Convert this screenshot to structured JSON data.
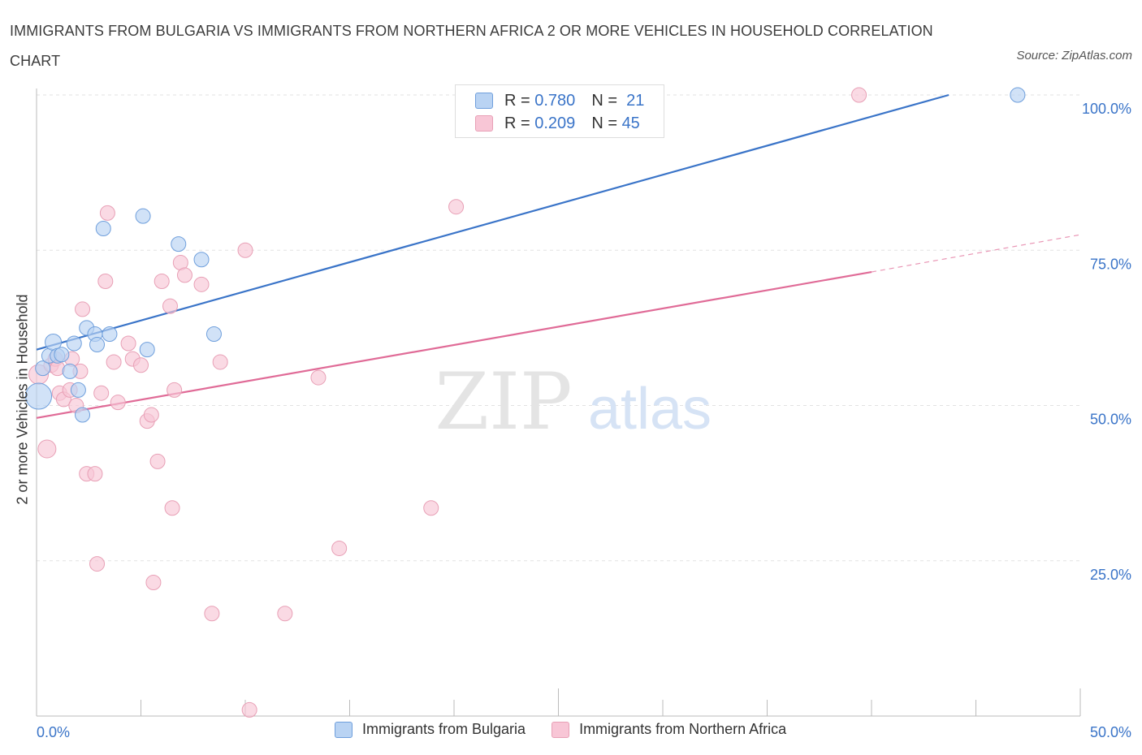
{
  "title": "IMMIGRANTS FROM BULGARIA VS IMMIGRANTS FROM NORTHERN AFRICA 2 OR MORE VEHICLES IN HOUSEHOLD CORRELATION CHART",
  "source": "Source: ZipAtlas.com",
  "watermark": {
    "zip": "ZIP",
    "atlas": "atlas"
  },
  "legend": {
    "rows": [
      {
        "r_label": "R =",
        "r_value": "0.780",
        "n_label": "N =",
        "n_value": "21"
      },
      {
        "r_label": "R =",
        "r_value": "0.209",
        "n_label": "N =",
        "n_value": "45"
      }
    ]
  },
  "colors": {
    "bulgaria_fill": "#b9d3f3",
    "bulgaria_stroke": "#6f9fdc",
    "bulgaria_line": "#3a74c8",
    "nafrica_fill": "#f8c6d6",
    "nafrica_stroke": "#e8a0b6",
    "nafrica_line": "#e06b97",
    "axis_text": "#3a74c8",
    "grid": "#e2e2e2"
  },
  "chart_data": {
    "type": "scatter",
    "title": "IMMIGRANTS FROM BULGARIA VS IMMIGRANTS FROM NORTHERN AFRICA 2 OR MORE VEHICLES IN HOUSEHOLD CORRELATION CHART",
    "xlabel": "",
    "ylabel": "2 or more Vehicles in Household",
    "xlim": [
      0,
      50
    ],
    "ylim": [
      0,
      100
    ],
    "x_tick_labels": [
      "0.0%",
      "50.0%"
    ],
    "y_ticks": [
      25,
      50,
      75,
      100
    ],
    "y_tick_labels": [
      "25.0%",
      "50.0%",
      "75.0%",
      "100.0%"
    ],
    "grid": true,
    "legend_position": "top-center",
    "series": [
      {
        "name": "Immigrants from Bulgaria",
        "r": 0.78,
        "n": 21,
        "points": [
          [
            0.1,
            51.5,
            16
          ],
          [
            0.3,
            56.0,
            9
          ],
          [
            0.6,
            58.0,
            9
          ],
          [
            0.8,
            60.2,
            10
          ],
          [
            1.0,
            58.0,
            9
          ],
          [
            1.2,
            58.2,
            9
          ],
          [
            1.6,
            55.5,
            9
          ],
          [
            1.8,
            60.0,
            9
          ],
          [
            2.0,
            52.5,
            9
          ],
          [
            2.2,
            48.5,
            9
          ],
          [
            2.4,
            62.5,
            9
          ],
          [
            2.8,
            61.5,
            9
          ],
          [
            2.9,
            59.8,
            9
          ],
          [
            3.2,
            78.5,
            9
          ],
          [
            3.5,
            61.5,
            9
          ],
          [
            5.1,
            80.5,
            9
          ],
          [
            5.3,
            59.0,
            9
          ],
          [
            6.8,
            76.0,
            9
          ],
          [
            7.9,
            73.5,
            9
          ],
          [
            8.5,
            61.5,
            9
          ],
          [
            47.0,
            100.0,
            9
          ]
        ],
        "trend": {
          "x0": 0,
          "y0": 59.0,
          "x1": 43.7,
          "y1": 100.0
        }
      },
      {
        "name": "Immigrants from Northern Africa",
        "r": 0.209,
        "n": 45,
        "points": [
          [
            0.1,
            55.0,
            12
          ],
          [
            0.5,
            43.0,
            11
          ],
          [
            0.7,
            56.5,
            9
          ],
          [
            0.9,
            57.5,
            9
          ],
          [
            1.0,
            56.0,
            9
          ],
          [
            1.1,
            52.0,
            9
          ],
          [
            1.3,
            51.0,
            9
          ],
          [
            1.6,
            52.5,
            9
          ],
          [
            1.7,
            57.5,
            9
          ],
          [
            1.9,
            50.0,
            9
          ],
          [
            2.1,
            55.5,
            9
          ],
          [
            2.2,
            65.5,
            9
          ],
          [
            2.4,
            39.0,
            9
          ],
          [
            2.8,
            39.0,
            9
          ],
          [
            2.9,
            24.5,
            9
          ],
          [
            3.1,
            52.0,
            9
          ],
          [
            3.3,
            70.0,
            9
          ],
          [
            3.4,
            81.0,
            9
          ],
          [
            3.7,
            57.0,
            9
          ],
          [
            3.9,
            50.5,
            9
          ],
          [
            4.4,
            60.0,
            9
          ],
          [
            4.6,
            57.5,
            9
          ],
          [
            5.0,
            56.5,
            9
          ],
          [
            5.3,
            47.5,
            9
          ],
          [
            5.5,
            48.5,
            9
          ],
          [
            5.6,
            21.5,
            9
          ],
          [
            5.8,
            41.0,
            9
          ],
          [
            6.0,
            70.0,
            9
          ],
          [
            6.4,
            66.0,
            9
          ],
          [
            6.5,
            33.5,
            9
          ],
          [
            6.6,
            52.5,
            9
          ],
          [
            6.9,
            73.0,
            9
          ],
          [
            7.1,
            71.0,
            9
          ],
          [
            7.9,
            69.5,
            9
          ],
          [
            8.4,
            16.5,
            9
          ],
          [
            8.8,
            57.0,
            9
          ],
          [
            10.0,
            75.0,
            9
          ],
          [
            10.2,
            1.0,
            9
          ],
          [
            11.9,
            16.5,
            9
          ],
          [
            13.5,
            54.5,
            9
          ],
          [
            14.5,
            27.0,
            9
          ],
          [
            18.9,
            33.5,
            9
          ],
          [
            20.1,
            82.0,
            9
          ],
          [
            39.4,
            100.0,
            9
          ],
          [
            7.2,
            55.0,
            0
          ]
        ],
        "trend": {
          "x0": 0,
          "y0": 48.0,
          "x1": 40.0,
          "y1": 71.5,
          "dash_to_x": 50,
          "dash_to_y": 77.5
        }
      }
    ]
  }
}
